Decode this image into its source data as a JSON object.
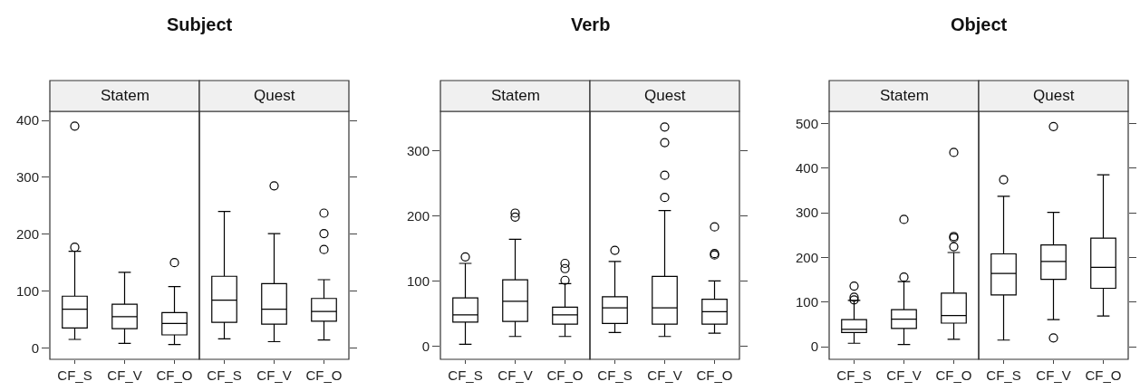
{
  "chart_data": [
    {
      "type": "box",
      "title": "Subject",
      "categories": [
        "CF_S",
        "CF_V",
        "CF_O"
      ],
      "ylim": [
        -20,
        416
      ],
      "yticks": [
        0,
        100,
        200,
        300,
        400
      ],
      "series": [
        {
          "name": "Statem",
          "color": "#000000",
          "boxes": [
            {
              "low": 15,
              "q1": 35,
              "median": 68,
              "q3": 91,
              "high": 170,
              "outliers": [
                177,
                390
              ]
            },
            {
              "low": 8,
              "q1": 34,
              "median": 55,
              "q3": 77,
              "high": 133
            },
            {
              "low": 6,
              "q1": 23,
              "median": 43,
              "q3": 62,
              "high": 108,
              "outliers": [
                150
              ]
            }
          ]
        }
      ]
    },
    {
      "type": "box",
      "categories": [
        "CF_S",
        "CF_V",
        "CF_O"
      ],
      "ylim": [
        -20,
        416
      ],
      "yticks": [
        0,
        100,
        200,
        300,
        400
      ],
      "tick_labels": "x",
      "series": [
        {
          "name": "Quest",
          "color": "#000000",
          "boxes": [
            {
              "low": 16,
              "q1": 45,
              "median": 84,
              "q3": 126,
              "high": 240
            },
            {
              "low": 11,
              "q1": 42,
              "median": 68,
              "q3": 113,
              "high": 201,
              "outliers": [
                285
              ]
            },
            {
              "low": 14,
              "q1": 47,
              "median": 64,
              "q3": 87,
              "high": 120,
              "outliers": [
                173,
                201,
                237
              ]
            }
          ]
        }
      ]
    },
    {
      "type": "box",
      "title": "Verb",
      "categories": [
        "CF_S",
        "CF_V",
        "CF_O"
      ],
      "ylim": [
        -20,
        360
      ],
      "yticks": [
        0,
        100,
        200,
        300
      ],
      "series": [
        {
          "name": "Statem",
          "color": "#000000",
          "boxes": [
            {
              "low": 3,
              "q1": 37,
              "median": 48,
              "q3": 74,
              "high": 127,
              "outliers": [
                137
              ]
            },
            {
              "low": 15,
              "q1": 38,
              "median": 69,
              "q3": 102,
              "high": 164,
              "outliers": [
                198,
                204
              ]
            },
            {
              "low": 15,
              "q1": 34,
              "median": 48,
              "q3": 60,
              "high": 96,
              "outliers": [
                101,
                119,
                127
              ]
            }
          ]
        }
      ]
    },
    {
      "type": "box",
      "categories": [
        "CF_S",
        "CF_V",
        "CF_O"
      ],
      "ylim": [
        -20,
        360
      ],
      "yticks": [
        0,
        100,
        200,
        300
      ],
      "tick_labels": "x",
      "series": [
        {
          "name": "Quest",
          "color": "#000000",
          "boxes": [
            {
              "low": 21,
              "q1": 35,
              "median": 59,
              "q3": 76,
              "high": 130,
              "outliers": [
                147
              ]
            },
            {
              "low": 15,
              "q1": 34,
              "median": 59,
              "q3": 107,
              "high": 208,
              "outliers": [
                228,
                262,
                312,
                336
              ]
            },
            {
              "low": 20,
              "q1": 34,
              "median": 53,
              "q3": 72,
              "high": 100,
              "outliers": [
                140,
                142,
                183
              ]
            }
          ]
        }
      ]
    },
    {
      "type": "box",
      "title": "Object",
      "categories": [
        "CF_S",
        "CF_V",
        "CF_O"
      ],
      "ylim": [
        -28,
        527
      ],
      "yticks": [
        0,
        100,
        200,
        300,
        400,
        500
      ],
      "series": [
        {
          "name": "Statem",
          "color": "#000000",
          "boxes": [
            {
              "low": 8,
              "q1": 32,
              "median": 39,
              "q3": 61,
              "high": 104,
              "outliers": [
                105,
                111,
                136
              ]
            },
            {
              "low": 5,
              "q1": 41,
              "median": 62,
              "q3": 83,
              "high": 146,
              "outliers": [
                156,
                285
              ]
            },
            {
              "low": 17,
              "q1": 53,
              "median": 70,
              "q3": 120,
              "high": 211,
              "outliers": [
                224,
                244,
                247,
                435
              ]
            }
          ]
        }
      ]
    },
    {
      "type": "box",
      "categories": [
        "CF_S",
        "CF_V",
        "CF_O"
      ],
      "ylim": [
        -28,
        527
      ],
      "yticks": [
        0,
        100,
        200,
        300,
        400,
        500
      ],
      "tick_labels": "x",
      "series": [
        {
          "name": "Quest",
          "color": "#000000",
          "boxes": [
            {
              "low": 15,
              "q1": 116,
              "median": 164,
              "q3": 208,
              "high": 337,
              "outliers": [
                374
              ]
            },
            {
              "low": 61,
              "q1": 151,
              "median": 191,
              "q3": 228,
              "high": 301,
              "outliers": [
                20,
                493
              ]
            },
            {
              "low": 69,
              "q1": 131,
              "median": 178,
              "q3": 243,
              "high": 385
            }
          ]
        }
      ]
    }
  ]
}
